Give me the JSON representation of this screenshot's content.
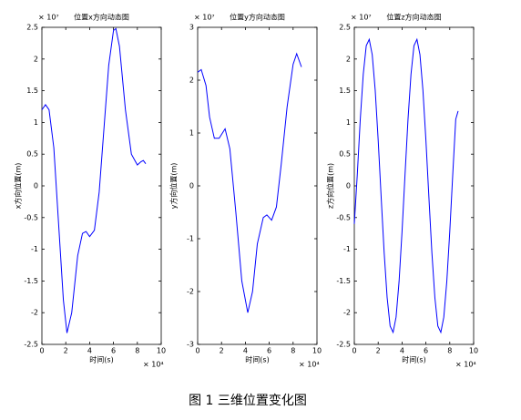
{
  "chart_data": [
    {
      "type": "line",
      "title": "位置x方向动态图",
      "x_label": "时间(s)",
      "y_label": "x方向位置(m)",
      "x_exponent": "× 10⁴",
      "y_exponent": "× 10⁷",
      "color": "#0000ff",
      "xlim": [
        0,
        10
      ],
      "xticks": [
        0,
        2,
        4,
        6,
        8,
        10
      ],
      "ylim": [
        -2.5,
        2.5
      ],
      "yticks": [
        -2.5,
        -2,
        -1.5,
        -1,
        -0.5,
        0,
        0.5,
        1,
        1.5,
        2,
        2.5
      ],
      "x": [
        0,
        0.3,
        0.6,
        1.0,
        1.4,
        1.8,
        2.1,
        2.5,
        3.0,
        3.4,
        3.7,
        4.0,
        4.4,
        4.8,
        5.2,
        5.6,
        6.0,
        6.2,
        6.5,
        7.0,
        7.5,
        8.0,
        8.3,
        8.5,
        8.7
      ],
      "values": [
        1.2,
        1.28,
        1.2,
        0.6,
        -0.6,
        -1.8,
        -2.32,
        -2.0,
        -1.1,
        -0.75,
        -0.72,
        -0.8,
        -0.7,
        -0.1,
        0.9,
        1.9,
        2.45,
        2.48,
        2.2,
        1.2,
        0.5,
        0.33,
        0.38,
        0.4,
        0.35
      ]
    },
    {
      "type": "line",
      "title": "位置y方向动态图",
      "x_label": "时间(s)",
      "y_label": "y方向位置(m)",
      "x_exponent": "× 10⁴",
      "y_exponent": "× 10⁷",
      "color": "#0000ff",
      "xlim": [
        0,
        10
      ],
      "xticks": [
        0,
        2,
        4,
        6,
        8,
        10
      ],
      "ylim": [
        -3,
        3
      ],
      "yticks": [
        -3,
        -2,
        -1,
        0,
        1,
        2,
        3
      ],
      "x": [
        0,
        0.3,
        0.7,
        1.0,
        1.4,
        1.8,
        2.3,
        2.7,
        3.2,
        3.7,
        4.2,
        4.6,
        5.0,
        5.5,
        5.8,
        6.2,
        6.6,
        7.0,
        7.5,
        8.0,
        8.3,
        8.7
      ],
      "values": [
        2.15,
        2.2,
        1.9,
        1.3,
        0.9,
        0.9,
        1.08,
        0.7,
        -0.5,
        -1.8,
        -2.4,
        -2.0,
        -1.1,
        -0.6,
        -0.55,
        -0.65,
        -0.4,
        0.4,
        1.5,
        2.3,
        2.5,
        2.25
      ]
    },
    {
      "type": "line",
      "title": "位置z方向动态图",
      "x_label": "时间(s)",
      "y_label": "z方向位置(m)",
      "x_exponent": "× 10⁴",
      "y_exponent": "× 10⁷",
      "color": "#0000ff",
      "xlim": [
        0,
        10
      ],
      "xticks": [
        0,
        2,
        4,
        6,
        8,
        10
      ],
      "ylim": [
        -2.5,
        2.5
      ],
      "yticks": [
        -2.5,
        -2,
        -1.5,
        -1,
        -0.5,
        0,
        0.5,
        1,
        1.5,
        2,
        2.5
      ],
      "x": [
        0,
        0.25,
        0.5,
        0.75,
        1.0,
        1.25,
        1.5,
        1.75,
        2.0,
        2.25,
        2.5,
        2.75,
        3.0,
        3.25,
        3.5,
        3.75,
        4.0,
        4.25,
        4.5,
        4.75,
        5.0,
        5.25,
        5.5,
        5.75,
        6.0,
        6.25,
        6.5,
        6.75,
        7.0,
        7.25,
        7.5,
        7.75,
        8.0,
        8.25,
        8.5,
        8.7
      ],
      "values": [
        -0.6,
        0.18,
        1.05,
        1.76,
        2.21,
        2.31,
        2.07,
        1.51,
        0.72,
        -0.18,
        -1.05,
        -1.76,
        -2.21,
        -2.31,
        -2.07,
        -1.51,
        -0.72,
        0.18,
        1.05,
        1.76,
        2.21,
        2.31,
        2.07,
        1.51,
        0.72,
        -0.18,
        -1.05,
        -1.76,
        -2.21,
        -2.31,
        -2.07,
        -1.51,
        -0.72,
        0.18,
        1.05,
        1.18
      ]
    }
  ],
  "caption": "图 1  三维位置变化图"
}
